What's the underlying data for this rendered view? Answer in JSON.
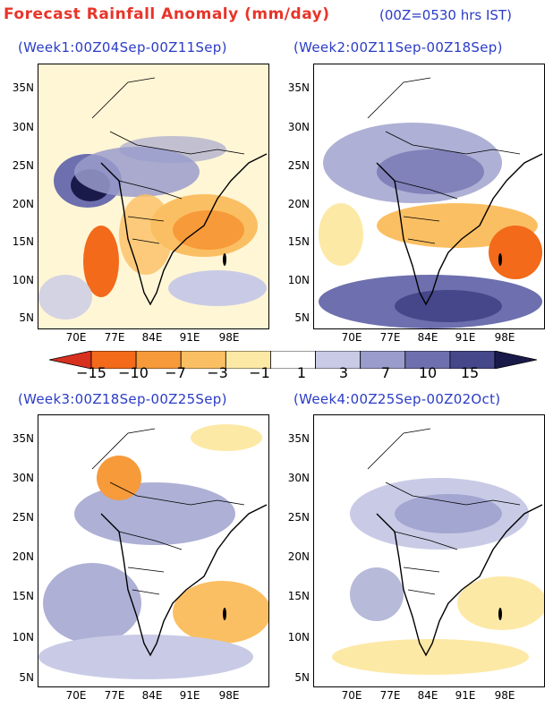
{
  "header": {
    "title": "Forecast Rainfall Anomaly (mm/day)",
    "time_note": "(00Z=0530 hrs IST)"
  },
  "panels": [
    {
      "title": "(Week1:00Z04Sep-00Z11Sep)"
    },
    {
      "title": "(Week2:00Z11Sep-00Z18Sep)"
    },
    {
      "title": "(Week3:00Z18Sep-00Z25Sep)"
    },
    {
      "title": "(Week4:00Z25Sep-00Z02Oct)"
    }
  ],
  "axes": {
    "lat_labels": [
      "35N",
      "30N",
      "25N",
      "20N",
      "15N",
      "10N",
      "5N"
    ],
    "lon_labels": [
      "70E",
      "77E",
      "84E",
      "91E",
      "98E"
    ]
  },
  "colorbar": {
    "labels": [
      "−15",
      "−10",
      "−7",
      "−3",
      "−1",
      "1",
      "3",
      "7",
      "10",
      "15"
    ],
    "colors": [
      "#d7301f",
      "#f26a1a",
      "#f79a3a",
      "#fbbf63",
      "#fde9a6",
      "#ffffff",
      "#c9cbe6",
      "#9a9ccb",
      "#6d6fae",
      "#45478a",
      "#1a1a4a"
    ]
  }
}
